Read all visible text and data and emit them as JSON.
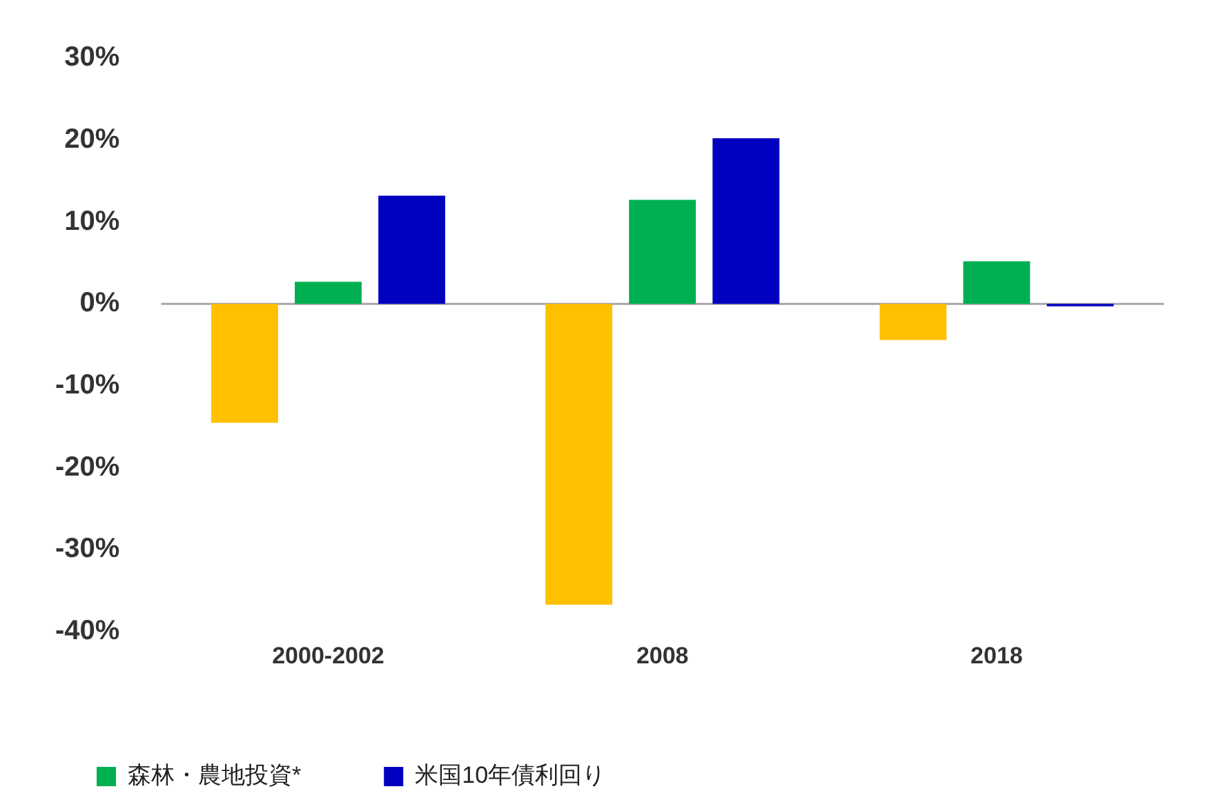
{
  "chart_data": {
    "type": "bar",
    "categories": [
      "2000-2002",
      "2008",
      "2018"
    ],
    "series": [
      {
        "color": "#ffc000",
        "values": [
          -14.5,
          -36.7,
          -4.4
        ]
      },
      {
        "name": "森林・農地投資*",
        "color": "#00b050",
        "values": [
          2.7,
          12.7,
          5.2
        ]
      },
      {
        "name": "米国10年債利回り",
        "color": "#0000c0",
        "values": [
          13.2,
          20.2,
          -0.3
        ]
      }
    ],
    "ylim": [
      -40,
      30
    ],
    "yticks": [
      {
        "value": -40,
        "label": "-40%"
      },
      {
        "value": -30,
        "label": "-30%"
      },
      {
        "value": -20,
        "label": "-20%"
      },
      {
        "value": -10,
        "label": "-10%"
      },
      {
        "value": 0,
        "label": "0%"
      },
      {
        "value": 10,
        "label": "10%"
      },
      {
        "value": 20,
        "label": "20%"
      },
      {
        "value": 30,
        "label": "30%"
      }
    ],
    "ref_lines": [
      {
        "axis": "y",
        "value": 0,
        "color": "#a6a6a6"
      }
    ],
    "legend": "bottom"
  }
}
